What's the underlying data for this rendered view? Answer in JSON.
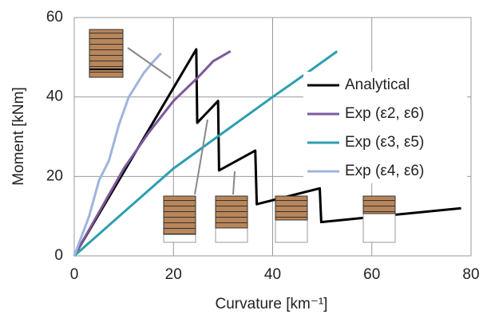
{
  "chart_data": {
    "type": "line",
    "xlabel": "Curvature [km⁻¹]",
    "ylabel": "Moment [kNm]",
    "xlim": [
      0,
      80
    ],
    "xticks": [
      0,
      20,
      40,
      60,
      80
    ],
    "ylim": [
      0,
      60
    ],
    "yticks": [
      0,
      20,
      40,
      60
    ],
    "grid": true,
    "legend": "upper right",
    "series": [
      {
        "name": "Analytical",
        "color": "#000000",
        "x": [
          0,
          24.6,
          24.8,
          29,
          29.2,
          36.5,
          36.8,
          49.5,
          49.8,
          78
        ],
        "values": [
          0,
          52,
          33.5,
          39,
          21.5,
          26.5,
          13,
          17,
          8.5,
          12
        ]
      },
      {
        "name": "Exp (ε2, ε6)",
        "color": "#7b5a9a",
        "x": [
          0,
          5,
          10,
          15,
          20,
          25,
          28,
          31.5
        ],
        "values": [
          0,
          11,
          22,
          31,
          39,
          45,
          49,
          51.5
        ]
      },
      {
        "name": "Exp (ε3, ε5)",
        "color": "#2e9fae",
        "x": [
          0,
          10,
          20,
          30,
          40,
          48,
          53
        ],
        "values": [
          0,
          11,
          22,
          31,
          40,
          47,
          51.5
        ]
      },
      {
        "name": "Exp (ε4, ε6)",
        "color": "#9fb4dc",
        "x": [
          0,
          3,
          5,
          7,
          9,
          11,
          14,
          16,
          17.5
        ],
        "values": [
          0,
          10,
          19,
          24,
          33,
          40,
          46,
          49,
          51
        ]
      }
    ]
  }
}
